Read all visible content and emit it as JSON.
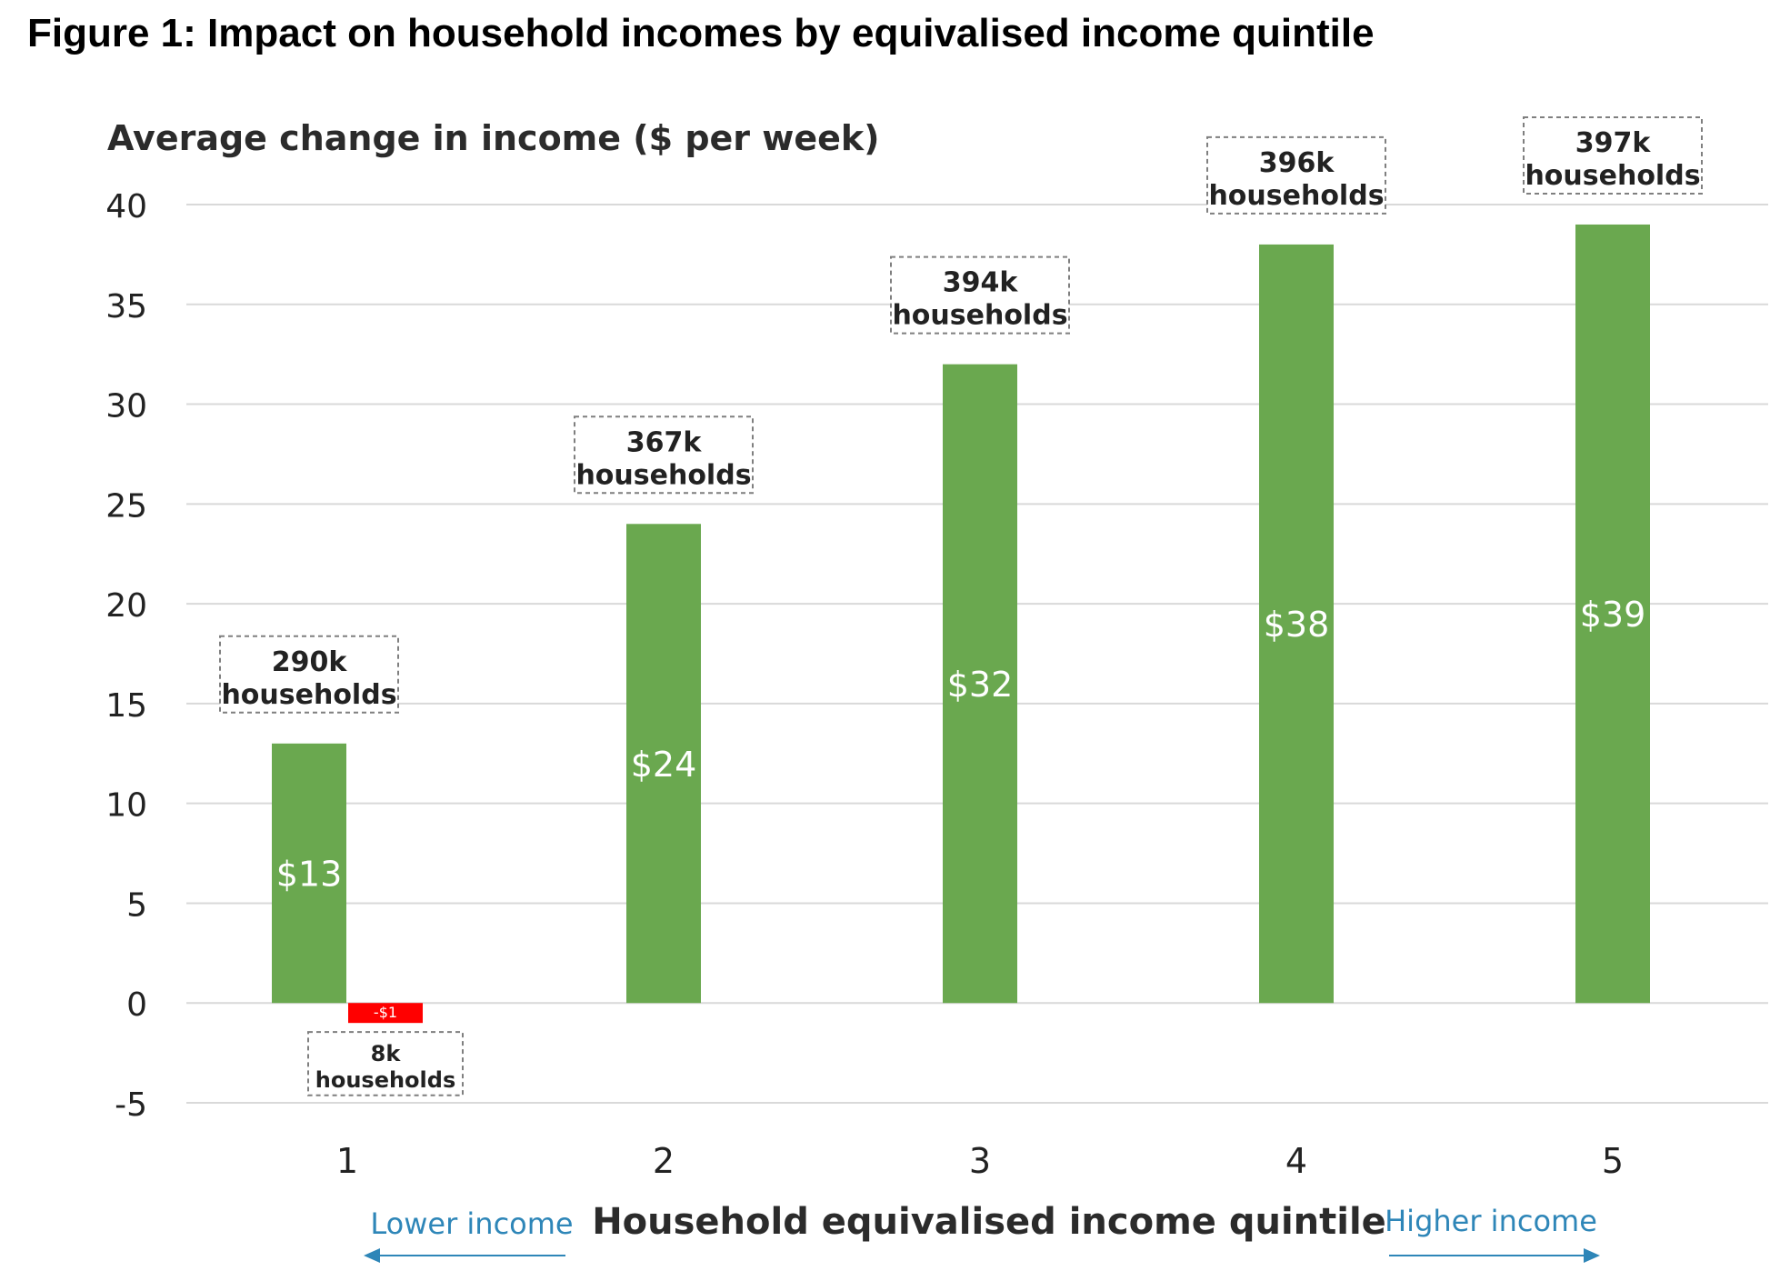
{
  "figure_title": "Figure 1: Impact on household incomes by equivalised income quintile",
  "colors": {
    "positive_bar": "#6aa84f",
    "negative_bar": "#ff0000",
    "gridline": "#d9d9d9",
    "arrow_text": "#2e86b8",
    "annotation_border": "#7f7f7f"
  },
  "chart_data": {
    "type": "bar",
    "title": "Figure 1: Impact on household incomes by equivalised income quintile",
    "ylabel": "Average change in income ($ per week)",
    "xlabel": "Household equivalised income quintile",
    "ylim": [
      -5,
      40
    ],
    "yticks": [
      -5,
      0,
      5,
      10,
      15,
      20,
      25,
      30,
      35,
      40
    ],
    "grid": true,
    "categories": [
      "1",
      "2",
      "3",
      "4",
      "5"
    ],
    "series": [
      {
        "values": [
          13,
          24,
          32,
          38,
          39
        ],
        "data_labels": [
          "$13",
          "$24",
          "$32",
          "$38",
          "$39"
        ],
        "household_labels": [
          "290k households",
          "367k households",
          "394k households",
          "396k households",
          "397k households"
        ]
      },
      {
        "values": [
          -1,
          null,
          null,
          null,
          null
        ],
        "data_labels": [
          "-$1",
          "",
          "",
          "",
          ""
        ],
        "household_labels": [
          "8k households",
          "",
          "",
          "",
          ""
        ]
      }
    ],
    "annotations": {
      "lower": "Lower income",
      "higher": "Higher income"
    }
  }
}
